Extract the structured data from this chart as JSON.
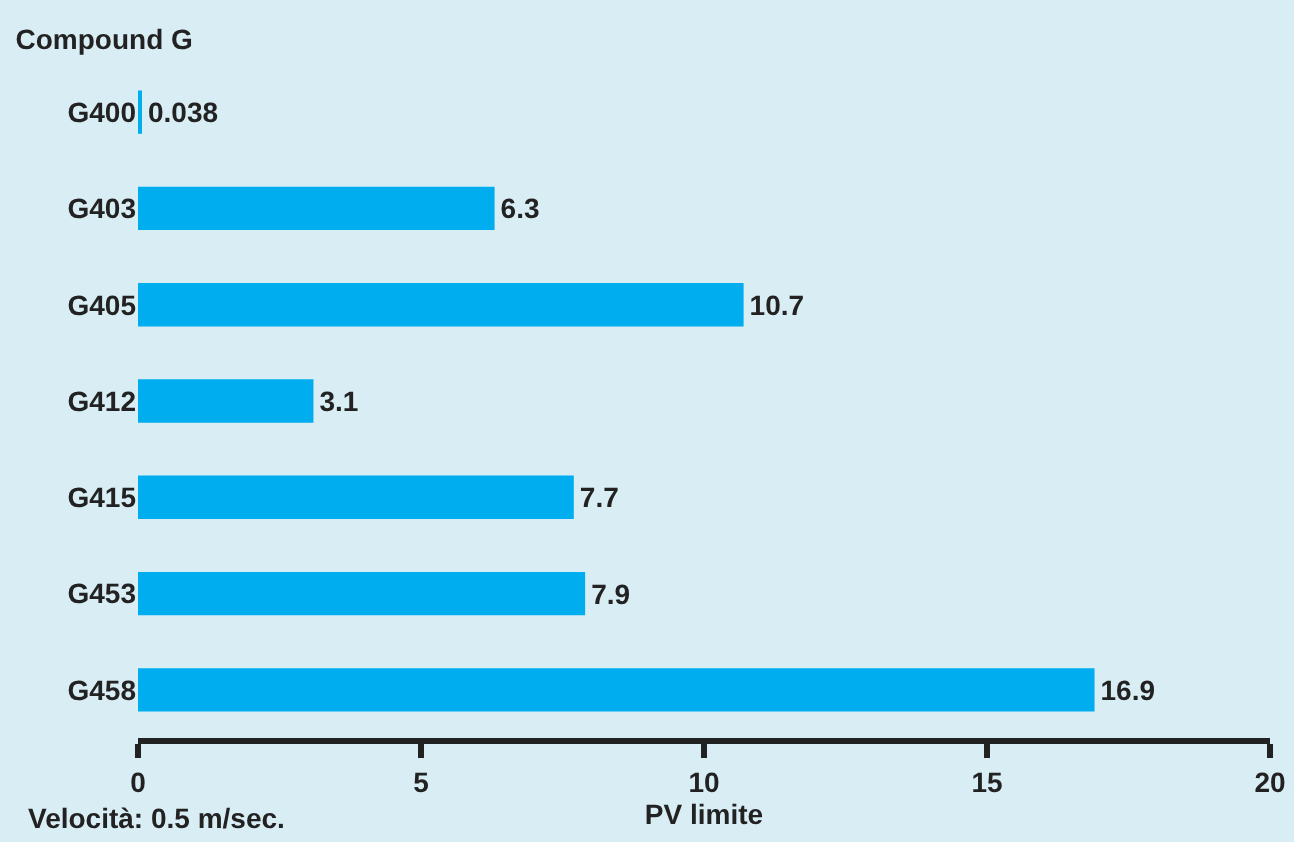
{
  "chart_data": {
    "type": "bar",
    "orientation": "horizontal",
    "title": "Compound G",
    "xlabel": "PV limite",
    "categories": [
      "G400",
      "G403",
      "G405",
      "G412",
      "G415",
      "G453",
      "G458"
    ],
    "values": [
      0.038,
      6.3,
      10.7,
      3.1,
      7.7,
      7.9,
      16.9
    ],
    "color": "#00aeef",
    "xlim": [
      0,
      20
    ],
    "xticks": [
      0,
      5,
      10,
      15,
      20
    ],
    "grid": false,
    "legend": false,
    "data_labels": true,
    "annotations": [
      "Velocità: 0.5 m/sec."
    ]
  }
}
